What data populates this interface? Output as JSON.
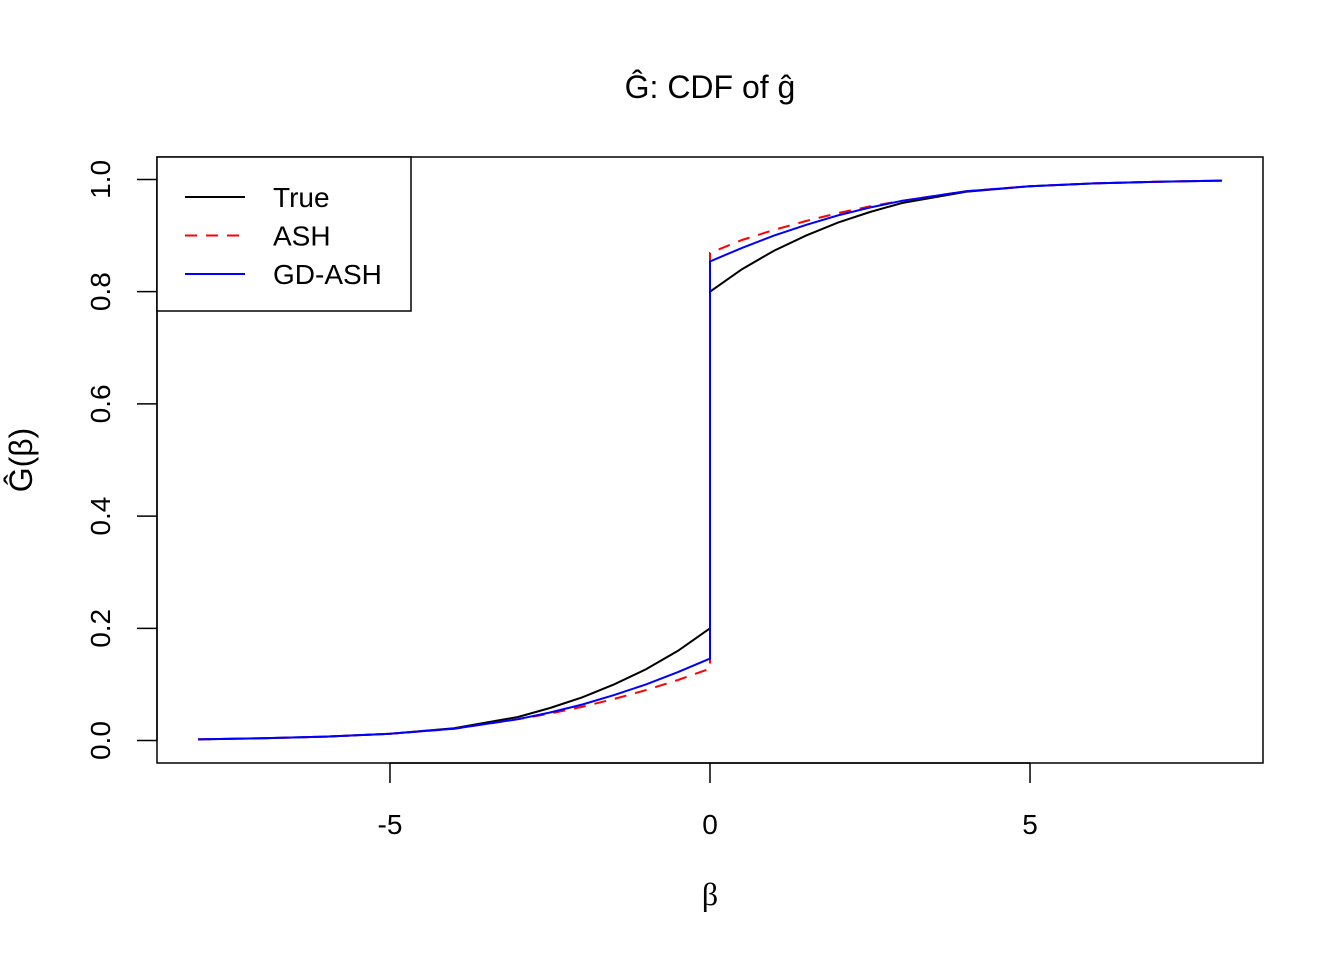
{
  "chart_data": {
    "type": "line",
    "title": "Ĝ: CDF of ĝ",
    "xlabel": "β",
    "ylabel": "Ĝ(β)",
    "xlim": [
      -8.64,
      8.64
    ],
    "ylim": [
      -0.04,
      1.04
    ],
    "xticks": [
      -5,
      0,
      5
    ],
    "xtick_labels": [
      "-5",
      "0",
      "5"
    ],
    "yticks": [
      0,
      0.2,
      0.4,
      0.6,
      0.8,
      1.0
    ],
    "ytick_labels": [
      "0.0",
      "0.2",
      "0.4",
      "0.6",
      "0.8",
      "1.0"
    ],
    "grid": false,
    "legend_position": "top-left",
    "x": [
      -8,
      -7,
      -6,
      -5,
      -4,
      -3,
      -2.5,
      -2,
      -1.5,
      -1,
      -0.5,
      0,
      0,
      0.5,
      1,
      1.5,
      2,
      2.5,
      3,
      4,
      5,
      6,
      7,
      8
    ],
    "series": [
      {
        "name": "True",
        "color": "#000000",
        "dash": "solid",
        "values": [
          0.002,
          0.004,
          0.007,
          0.012,
          0.022,
          0.042,
          0.058,
          0.077,
          0.1,
          0.127,
          0.16,
          0.2,
          0.8,
          0.84,
          0.873,
          0.9,
          0.923,
          0.942,
          0.958,
          0.978,
          0.988,
          0.993,
          0.996,
          0.998
        ]
      },
      {
        "name": "ASH",
        "color": "#ff0000",
        "dash": "dashed",
        "values": [
          0.002,
          0.004,
          0.007,
          0.012,
          0.021,
          0.038,
          0.048,
          0.06,
          0.074,
          0.09,
          0.108,
          0.128,
          0.869,
          0.892,
          0.91,
          0.926,
          0.94,
          0.952,
          0.962,
          0.979,
          0.988,
          0.993,
          0.996,
          0.998
        ]
      },
      {
        "name": "GD-ASH",
        "color": "#0000ff",
        "dash": "solid",
        "values": [
          0.002,
          0.004,
          0.007,
          0.012,
          0.021,
          0.038,
          0.05,
          0.064,
          0.081,
          0.1,
          0.122,
          0.146,
          0.854,
          0.878,
          0.9,
          0.919,
          0.936,
          0.95,
          0.962,
          0.979,
          0.988,
          0.993,
          0.996,
          0.998
        ]
      }
    ]
  }
}
